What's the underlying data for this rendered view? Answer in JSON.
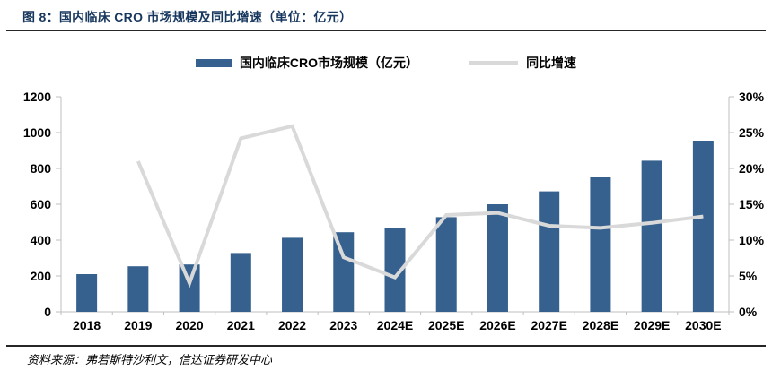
{
  "figure": {
    "title": "图 8：国内临床 CRO 市场规模及同比增速（单位：亿元）",
    "source": "资料来源：弗若斯特沙利文，信达证券研发中心"
  },
  "chart_data": {
    "type": "bar+line combo",
    "title": "国内临床 CRO 市场规模及同比增速（单位：亿元）",
    "categories": [
      "2018",
      "2019",
      "2020",
      "2021",
      "2022",
      "2023",
      "2024E",
      "2025E",
      "2026E",
      "2027E",
      "2028E",
      "2029E",
      "2030E"
    ],
    "series": [
      {
        "name": "国内临床CRO市场规模（亿元）",
        "type": "bar",
        "axis": "left",
        "color": "#36618F",
        "values": [
          210,
          254,
          264,
          328,
          413,
          444,
          465,
          528,
          600,
          672,
          750,
          843,
          955
        ]
      },
      {
        "name": "同比增速",
        "type": "line",
        "axis": "right",
        "color": "#D9D9D9",
        "values": [
          null,
          21.0,
          4.0,
          24.2,
          25.9,
          7.6,
          4.8,
          13.5,
          13.8,
          12.0,
          11.7,
          12.4,
          13.3
        ]
      }
    ],
    "left_axis": {
      "min": 0,
      "max": 1200,
      "step": 200,
      "ticks": [
        "0",
        "200",
        "400",
        "600",
        "800",
        "1000",
        "1200"
      ]
    },
    "right_axis": {
      "min": 0,
      "max": 30,
      "step": 5,
      "ticks": [
        "0%",
        "5%",
        "10%",
        "15%",
        "20%",
        "25%",
        "30%"
      ]
    },
    "grid": false,
    "legend_position": "top",
    "axis_color": "#BFBFBF"
  }
}
